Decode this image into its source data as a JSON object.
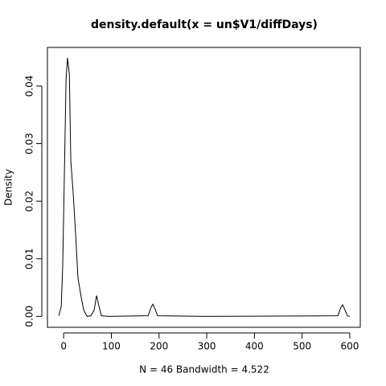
{
  "chart_data": {
    "type": "line",
    "title": "density.default(x = un$V1/diffDays)",
    "x_label": "N = 46   Bandwidth = 4.522",
    "y_label": "Density",
    "x": [
      -10,
      -5,
      -2,
      2,
      5,
      8,
      12,
      15,
      20,
      25,
      30,
      37,
      42,
      49,
      57,
      64,
      69,
      74,
      79,
      94,
      177,
      184,
      187,
      192,
      197,
      300,
      575,
      581,
      585,
      590,
      595,
      600
    ],
    "series": [
      {
        "color": "#000000",
        "values": [
          0.0001,
          0.0018,
          0.0088,
          0.027,
          0.041,
          0.0449,
          0.042,
          0.027,
          0.0214,
          0.0144,
          0.0067,
          0.0032,
          0.0011,
          0.0,
          0.0001,
          0.0011,
          0.0036,
          0.0018,
          0.0001,
          0.0,
          0.0001,
          0.0017,
          0.0021,
          0.0012,
          0.0001,
          0.0,
          0.0001,
          0.0015,
          0.002,
          0.0011,
          0.0001,
          0.0
        ]
      }
    ],
    "xlim": [
      -34,
      622
    ],
    "ylim": [
      -0.0019,
      0.0467
    ],
    "xticks": [
      0,
      100,
      200,
      300,
      400,
      500,
      600
    ],
    "yticks": [
      {
        "value": 0,
        "label": "0.00"
      },
      {
        "value": 0.01,
        "label": "0.01"
      },
      {
        "value": 0.02,
        "label": "0.02"
      },
      {
        "value": 0.03,
        "label": "0.03"
      },
      {
        "value": 0.04,
        "label": "0.04"
      }
    ]
  }
}
